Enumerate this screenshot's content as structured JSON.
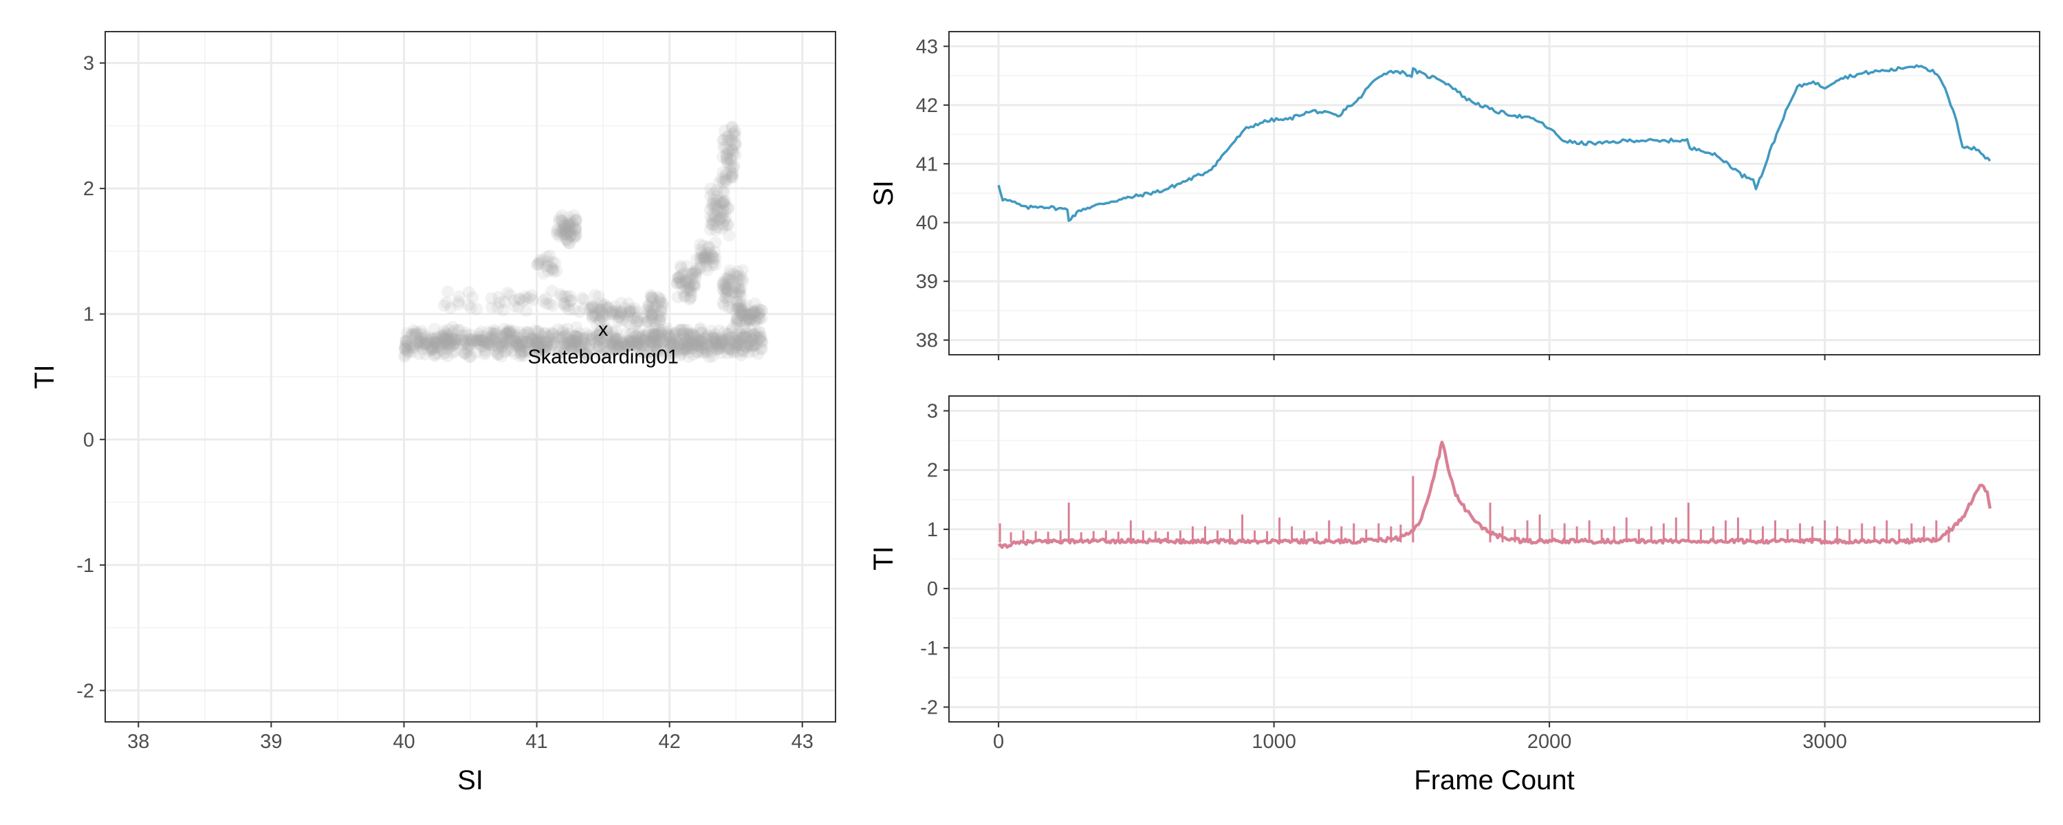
{
  "chart_data": [
    {
      "type": "scatter",
      "xlabel": "SI",
      "ylabel": "TI",
      "xlim": [
        37.75,
        43.25
      ],
      "ylim": [
        -2.25,
        3.25
      ],
      "x_ticks": [
        "38",
        "39",
        "40",
        "41",
        "42",
        "43"
      ],
      "y_ticks": [
        "-2",
        "-1",
        "0",
        "1",
        "2",
        "3"
      ],
      "grid": true,
      "point_color": "#a6a6a6",
      "point_alpha": 0.15,
      "marker": {
        "x": 41.5,
        "y": 0.88,
        "symbol": "x",
        "label": "Skateboarding01"
      },
      "clusters": [
        {
          "x": [
            40.0,
            42.7
          ],
          "y": [
            0.65,
            0.9
          ],
          "n": 900
        },
        {
          "x": [
            41.15,
            41.3
          ],
          "y": [
            1.55,
            1.8
          ],
          "n": 60
        },
        {
          "x": [
            40.3,
            41.5
          ],
          "y": [
            1.0,
            1.2
          ],
          "n": 60
        },
        {
          "x": [
            41.0,
            41.15
          ],
          "y": [
            1.3,
            1.5
          ],
          "n": 20
        },
        {
          "x": [
            41.4,
            41.9
          ],
          "y": [
            0.9,
            1.1
          ],
          "n": 80
        },
        {
          "x": [
            41.85,
            41.95
          ],
          "y": [
            0.9,
            1.2
          ],
          "n": 30
        },
        {
          "x": [
            42.05,
            42.2
          ],
          "y": [
            1.1,
            1.4
          ],
          "n": 50
        },
        {
          "x": [
            42.2,
            42.35
          ],
          "y": [
            1.3,
            1.6
          ],
          "n": 40
        },
        {
          "x": [
            42.3,
            42.45
          ],
          "y": [
            1.6,
            2.1
          ],
          "n": 60
        },
        {
          "x": [
            42.4,
            42.5
          ],
          "y": [
            2.0,
            2.55
          ],
          "n": 50
        },
        {
          "x": [
            42.4,
            42.55
          ],
          "y": [
            1.0,
            1.4
          ],
          "n": 60
        },
        {
          "x": [
            42.5,
            42.7
          ],
          "y": [
            0.9,
            1.1
          ],
          "n": 60
        }
      ]
    },
    {
      "type": "line",
      "ylabel": "SI",
      "xlim": [
        -180,
        3780
      ],
      "ylim": [
        37.75,
        43.25
      ],
      "x_ticks": [
        0,
        1000,
        2000,
        3000
      ],
      "y_ticks": [
        "38",
        "39",
        "40",
        "41",
        "42",
        "43"
      ],
      "color": "#4099c0",
      "grid": true,
      "series": [
        {
          "x": [
            0,
            15,
            50,
            100,
            150,
            200,
            250,
            255,
            300,
            400,
            500,
            600,
            700,
            750,
            780,
            850,
            900,
            950,
            1000,
            1050,
            1100,
            1150,
            1200,
            1240,
            1260,
            1300,
            1350,
            1400,
            1450,
            1500,
            1505,
            1550,
            1600,
            1650,
            1700,
            1750,
            1800,
            1850,
            1900,
            1950,
            2000,
            2050,
            2100,
            2150,
            2200,
            2250,
            2300,
            2350,
            2400,
            2450,
            2500,
            2510,
            2550,
            2600,
            2650,
            2700,
            2740,
            2750,
            2770,
            2800,
            2850,
            2900,
            2950,
            3000,
            3050,
            3100,
            3150,
            3200,
            3250,
            3300,
            3350,
            3400,
            3430,
            3450,
            3480,
            3500,
            3550,
            3600
          ],
          "y": [
            40.65,
            40.4,
            40.35,
            40.25,
            40.28,
            40.25,
            40.22,
            40.05,
            40.22,
            40.35,
            40.45,
            40.55,
            40.75,
            40.85,
            40.95,
            41.35,
            41.6,
            41.7,
            41.75,
            41.75,
            41.85,
            41.9,
            41.85,
            41.8,
            41.95,
            42.05,
            42.35,
            42.55,
            42.58,
            42.5,
            42.6,
            42.5,
            42.45,
            42.3,
            42.1,
            42.0,
            41.9,
            41.85,
            41.8,
            41.75,
            41.6,
            41.4,
            41.35,
            41.35,
            41.35,
            41.38,
            41.4,
            41.4,
            41.38,
            41.4,
            41.4,
            41.25,
            41.25,
            41.15,
            41.0,
            40.8,
            40.75,
            40.6,
            40.8,
            41.2,
            41.8,
            42.3,
            42.4,
            42.3,
            42.45,
            42.5,
            42.55,
            42.58,
            42.6,
            42.65,
            42.68,
            42.55,
            42.35,
            42.1,
            41.7,
            41.3,
            41.25,
            41.05
          ]
        }
      ]
    },
    {
      "type": "line",
      "xlabel": "Frame Count",
      "ylabel": "TI",
      "xlim": [
        -180,
        3780
      ],
      "ylim": [
        -2.25,
        3.25
      ],
      "x_ticks": [
        "0",
        "1000",
        "2000",
        "3000"
      ],
      "y_ticks": [
        "-2",
        "-1",
        "0",
        "1",
        "2",
        "3"
      ],
      "color": "#d98095",
      "grid": true,
      "series": [
        {
          "x": [
            0,
            50,
            100,
            200,
            300,
            400,
            500,
            600,
            700,
            800,
            900,
            1000,
            1100,
            1200,
            1300,
            1400,
            1450,
            1500,
            1530,
            1560,
            1580,
            1600,
            1610,
            1620,
            1640,
            1660,
            1700,
            1750,
            1800,
            1850,
            1900,
            2000,
            2100,
            2200,
            2300,
            2400,
            2500,
            2600,
            2700,
            2800,
            2900,
            3000,
            3100,
            3200,
            3300,
            3400,
            3450,
            3500,
            3530,
            3550,
            3570,
            3590,
            3600
          ],
          "y": [
            0.7,
            0.75,
            0.78,
            0.8,
            0.8,
            0.8,
            0.8,
            0.8,
            0.8,
            0.8,
            0.8,
            0.8,
            0.8,
            0.8,
            0.8,
            0.82,
            0.85,
            0.95,
            1.15,
            1.5,
            1.9,
            2.25,
            2.5,
            2.3,
            1.9,
            1.6,
            1.3,
            1.05,
            0.9,
            0.85,
            0.8,
            0.8,
            0.8,
            0.8,
            0.8,
            0.8,
            0.8,
            0.8,
            0.8,
            0.8,
            0.8,
            0.8,
            0.8,
            0.8,
            0.8,
            0.82,
            0.95,
            1.2,
            1.45,
            1.65,
            1.75,
            1.6,
            1.35
          ]
        }
      ],
      "spikes": {
        "x": [
          5,
          45,
          90,
          135,
          180,
          225,
          255,
          300,
          345,
          390,
          435,
          480,
          525,
          570,
          615,
          660,
          705,
          750,
          795,
          840,
          885,
          930,
          975,
          1020,
          1065,
          1110,
          1155,
          1200,
          1245,
          1290,
          1335,
          1380,
          1425,
          1460,
          1505,
          1785,
          1830,
          1875,
          1920,
          1965,
          2010,
          2055,
          2100,
          2145,
          2190,
          2235,
          2280,
          2325,
          2370,
          2415,
          2460,
          2505,
          2550,
          2595,
          2640,
          2685,
          2730,
          2775,
          2820,
          2865,
          2910,
          2955,
          3000,
          3045,
          3090,
          3135,
          3180,
          3225,
          3270,
          3315,
          3360,
          3405,
          3450
        ],
        "y": [
          1.1,
          0.95,
          0.98,
          0.97,
          0.96,
          0.98,
          1.45,
          0.95,
          0.97,
          0.98,
          0.96,
          1.15,
          0.98,
          0.97,
          0.96,
          0.98,
          1.05,
          1.05,
          0.98,
          1.0,
          1.25,
          0.98,
          0.97,
          1.2,
          1.05,
          0.98,
          0.96,
          1.15,
          1.05,
          1.1,
          1.0,
          1.1,
          1.05,
          1.08,
          1.9,
          1.45,
          1.05,
          1.0,
          1.15,
          1.25,
          1.0,
          1.1,
          1.05,
          1.15,
          1.0,
          1.05,
          1.2,
          1.0,
          1.05,
          1.1,
          1.2,
          1.45,
          1.0,
          1.05,
          1.15,
          1.2,
          1.0,
          1.05,
          1.15,
          1.0,
          1.1,
          1.05,
          1.15,
          1.05,
          1.0,
          1.1,
          1.05,
          1.15,
          1.0,
          1.1,
          1.05,
          1.15,
          1.05
        ]
      }
    }
  ]
}
